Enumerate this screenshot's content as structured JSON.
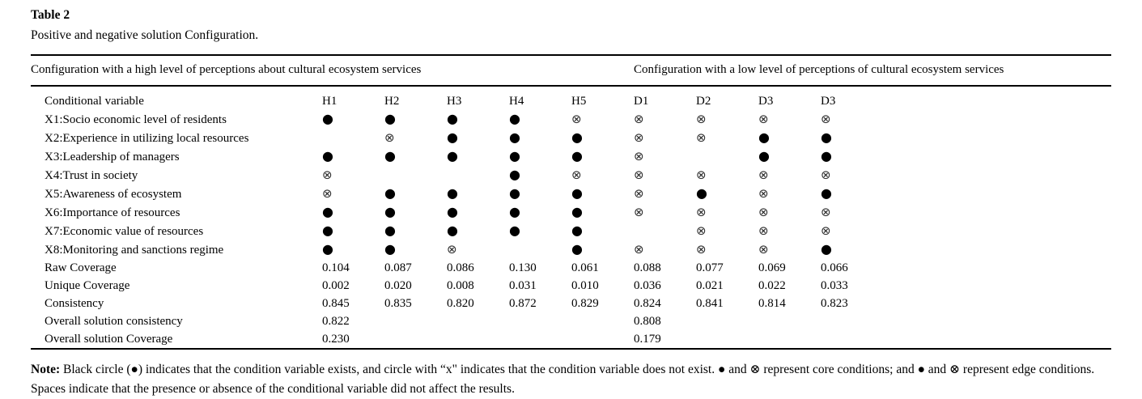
{
  "caption": {
    "label": "Table 2",
    "title": "Positive and negative solution Configuration."
  },
  "group_headers": {
    "high": "Configuration with a high level of perceptions about cultural ecosystem services",
    "low": "Configuration with a low level of perceptions of cultural ecosystem services"
  },
  "columns": {
    "label": "Conditional variable",
    "solutions": [
      "H1",
      "H2",
      "H3",
      "H4",
      "H5",
      "D1",
      "D2",
      "D3",
      "D3"
    ]
  },
  "legend": {
    "present_symbol": "●",
    "absent_symbol": "⊗"
  },
  "condition_rows": [
    {
      "label": "X1:Socio economic level of residents",
      "cells": [
        "●",
        "●",
        "●",
        "●",
        "⊗",
        "⊗",
        "⊗",
        "⊗",
        "⊗"
      ]
    },
    {
      "label": "X2:Experience in utilizing local resources",
      "cells": [
        "",
        "⊗",
        "●",
        "●",
        "●",
        "⊗",
        "⊗",
        "●",
        "●"
      ]
    },
    {
      "label": "X3:Leadership of managers",
      "cells": [
        "●",
        "●",
        "●",
        "●",
        "●",
        "⊗",
        "",
        "●",
        "●"
      ]
    },
    {
      "label": "X4:Trust in society",
      "cells": [
        "⊗",
        "",
        "",
        "●",
        "⊗",
        "⊗",
        "⊗",
        "⊗",
        "⊗"
      ]
    },
    {
      "label": "X5:Awareness of ecosystem",
      "cells": [
        "⊗",
        "●",
        "●",
        "●",
        "●",
        "⊗",
        "●",
        "⊗",
        "●"
      ]
    },
    {
      "label": "X6:Importance of resources",
      "cells": [
        "●",
        "●",
        "●",
        "●",
        "●",
        "⊗",
        "⊗",
        "⊗",
        "⊗"
      ]
    },
    {
      "label": "X7:Economic value of resources",
      "cells": [
        "●",
        "●",
        "●",
        "●",
        "●",
        "",
        "⊗",
        "⊗",
        "⊗"
      ]
    },
    {
      "label": "X8:Monitoring and sanctions regime",
      "cells": [
        "●",
        "●",
        "⊗",
        "",
        "●",
        "⊗",
        "⊗",
        "⊗",
        "●"
      ]
    }
  ],
  "metric_rows": [
    {
      "label": "Raw Coverage",
      "values": [
        "0.104",
        "0.087",
        "0.086",
        "0.130",
        "0.061",
        "0.088",
        "0.077",
        "0.069",
        "0.066"
      ]
    },
    {
      "label": "Unique Coverage",
      "values": [
        "0.002",
        "0.020",
        "0.008",
        "0.031",
        "0.010",
        "0.036",
        "0.021",
        "0.022",
        "0.033"
      ]
    },
    {
      "label": "Consistency",
      "values": [
        "0.845",
        "0.835",
        "0.820",
        "0.872",
        "0.829",
        "0.824",
        "0.841",
        "0.814",
        "0.823"
      ]
    },
    {
      "label": "Overall solution consistency",
      "values": [
        "0.822",
        "",
        "",
        "",
        "",
        "0.808",
        "",
        "",
        ""
      ]
    },
    {
      "label": "Overall solution Coverage",
      "values": [
        "0.230",
        "",
        "",
        "",
        "",
        "0.179",
        "",
        "",
        ""
      ]
    }
  ],
  "note": {
    "label": "Note:",
    "text": " Black circle (●) indicates that the condition variable exists, and circle with “x\" indicates that the condition variable does not exist. ● and ⊗ represent core conditions; and ● and ⊗ represent edge conditions. Spaces indicate that the presence or absence of the conditional variable did not affect the results."
  }
}
